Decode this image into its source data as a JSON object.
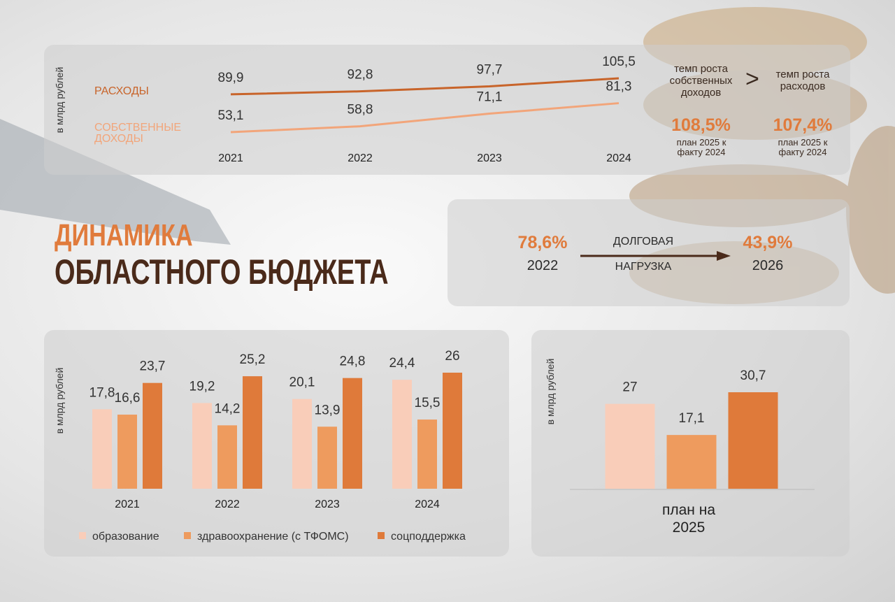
{
  "title": {
    "line1": "ДИНАМИКА",
    "line2": "ОБЛАСТНОГО БЮДЖЕТА"
  },
  "growth": {
    "left": {
      "label": "темп роста собственных доходов",
      "value": "108,5%",
      "note": "план 2025 к факту 2024"
    },
    "sign": ">",
    "right": {
      "label": "темп роста расходов",
      "value": "107,4%",
      "note": "план 2025 к факту 2024"
    }
  },
  "debt": {
    "label": [
      "ДОЛГОВАЯ",
      "НАГРУЗКА"
    ],
    "from": {
      "value": "78,6%",
      "year": "2022"
    },
    "to": {
      "value": "43,9%",
      "year": "2026"
    }
  },
  "chart_data": [
    {
      "type": "line",
      "ylabel": "в млрд рублей",
      "categories": [
        "2021",
        "2022",
        "2023",
        "2024"
      ],
      "series": [
        {
          "name": "РАСХОДЫ",
          "color": "#c8642a",
          "values": [
            89.9,
            92.8,
            97.7,
            105.5
          ],
          "value_labels": [
            "89,9",
            "92,8",
            "97,7",
            "105,5"
          ]
        },
        {
          "name": "СОБСТВЕННЫЕ ДОХОДЫ",
          "color": "#f2a57a",
          "values": [
            53.1,
            58.8,
            71.1,
            81.3
          ],
          "value_labels": [
            "53,1",
            "58,8",
            "71,1",
            "81,3"
          ]
        }
      ]
    },
    {
      "type": "bar",
      "ylabel": "в млрд рублей",
      "categories": [
        "2021",
        "2022",
        "2023",
        "2024"
      ],
      "legend": "bottom",
      "series": [
        {
          "name": "образование",
          "color": "#f9cdb9",
          "values": [
            17.8,
            19.2,
            20.1,
            24.4
          ],
          "value_labels": [
            "17,8",
            "19,2",
            "20,1",
            "24,4"
          ]
        },
        {
          "name": "здравоохранение (с ТФОМС)",
          "color": "#ee9b5e",
          "values": [
            16.6,
            14.2,
            13.9,
            15.5
          ],
          "value_labels": [
            "16,6",
            "14,2",
            "13,9",
            "15,5"
          ]
        },
        {
          "name": "соцподдержка",
          "color": "#df7a3a",
          "values": [
            23.7,
            25.2,
            24.8,
            26
          ],
          "value_labels": [
            "23,7",
            "25,2",
            "24,8",
            "26"
          ]
        }
      ]
    },
    {
      "type": "bar",
      "ylabel": "в млрд рублей",
      "xlabel": "план на 2025",
      "values": [
        27,
        17.1,
        30.7
      ],
      "value_labels": [
        "27",
        "17,1",
        "30,7"
      ],
      "colors": [
        "#f9cdb9",
        "#ee9b5e",
        "#df7a3a"
      ]
    }
  ]
}
